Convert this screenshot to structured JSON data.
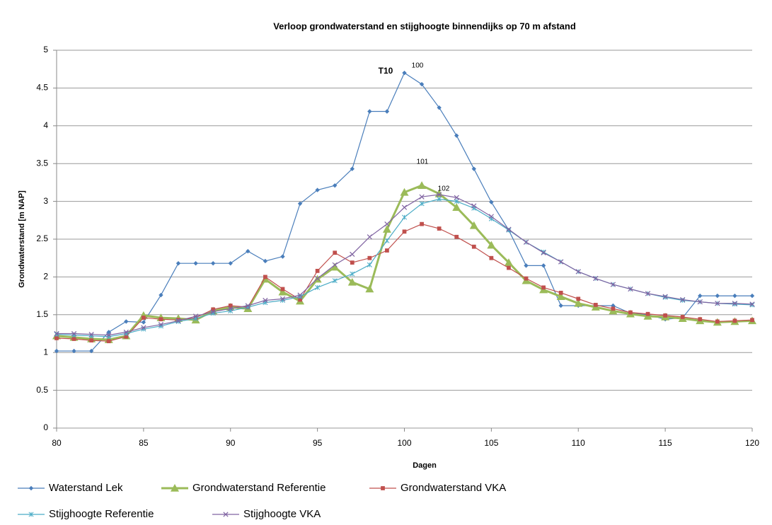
{
  "chart_data": {
    "type": "line",
    "title": "Verloop grondwaterstand en stijghoogte binnendijks op 70 m afstand",
    "x_label": "Dagen",
    "y_label": "Grondwaterstand [m NAP]",
    "annotations": [
      "T10",
      "100",
      "101",
      "102"
    ],
    "x": [
      80,
      81,
      82,
      83,
      84,
      85,
      86,
      87,
      88,
      89,
      90,
      91,
      92,
      93,
      94,
      95,
      96,
      97,
      98,
      99,
      100,
      101,
      102,
      103,
      104,
      105,
      106,
      107,
      108,
      109,
      110,
      111,
      112,
      113,
      114,
      115,
      116,
      117,
      118,
      119,
      120
    ],
    "series": [
      {
        "name": "Waterstand Lek",
        "color": "#4a7ebb",
        "marker": "diamond",
        "values": [
          1.02,
          1.02,
          1.02,
          1.27,
          1.41,
          1.4,
          1.76,
          2.18,
          2.18,
          2.18,
          2.18,
          2.34,
          2.21,
          2.27,
          2.97,
          3.15,
          3.21,
          3.43,
          4.19,
          4.19,
          4.7,
          4.55,
          4.24,
          3.87,
          3.43,
          2.99,
          2.62,
          2.15,
          2.15,
          1.62,
          1.62,
          1.62,
          1.62,
          1.52,
          1.5,
          1.44,
          1.46,
          1.75,
          1.75,
          1.75,
          1.75
        ]
      },
      {
        "name": "Grondwaterstand Referentie",
        "color": "#9bbb59",
        "marker": "triangle",
        "values": [
          1.22,
          1.2,
          1.18,
          1.17,
          1.22,
          1.49,
          1.46,
          1.45,
          1.43,
          1.55,
          1.6,
          1.58,
          1.97,
          1.8,
          1.68,
          1.97,
          2.13,
          1.93,
          1.84,
          2.63,
          3.12,
          3.21,
          3.1,
          2.92,
          2.68,
          2.42,
          2.19,
          1.95,
          1.83,
          1.74,
          1.65,
          1.6,
          1.55,
          1.51,
          1.48,
          1.47,
          1.45,
          1.42,
          1.4,
          1.41,
          1.42
        ]
      },
      {
        "name": "Grondwaterstand VKA",
        "color": "#c0504d",
        "marker": "square",
        "values": [
          1.19,
          1.18,
          1.16,
          1.15,
          1.21,
          1.46,
          1.44,
          1.43,
          1.46,
          1.57,
          1.62,
          1.6,
          2.0,
          1.84,
          1.7,
          2.08,
          2.32,
          2.19,
          2.25,
          2.35,
          2.6,
          2.7,
          2.64,
          2.53,
          2.4,
          2.25,
          2.12,
          1.98,
          1.86,
          1.79,
          1.71,
          1.63,
          1.58,
          1.53,
          1.51,
          1.49,
          1.47,
          1.44,
          1.41,
          1.42,
          1.43
        ]
      },
      {
        "name": "Stijghoogte Referentie",
        "color": "#4bacc6",
        "marker": "star",
        "values": [
          1.24,
          1.23,
          1.22,
          1.21,
          1.25,
          1.31,
          1.35,
          1.41,
          1.45,
          1.52,
          1.55,
          1.6,
          1.66,
          1.69,
          1.74,
          1.86,
          1.95,
          2.04,
          2.16,
          2.48,
          2.79,
          2.97,
          3.03,
          3.0,
          2.91,
          2.77,
          2.62,
          2.46,
          2.33,
          2.2,
          2.07,
          1.98,
          1.9,
          1.84,
          1.78,
          1.73,
          1.69,
          1.67,
          1.65,
          1.64,
          1.63
        ]
      },
      {
        "name": "Stijghoogte VKA",
        "color": "#8064a2",
        "marker": "cross",
        "values": [
          1.25,
          1.25,
          1.24,
          1.23,
          1.27,
          1.33,
          1.37,
          1.42,
          1.48,
          1.54,
          1.58,
          1.62,
          1.69,
          1.71,
          1.76,
          1.98,
          2.16,
          2.3,
          2.53,
          2.7,
          2.92,
          3.06,
          3.09,
          3.05,
          2.94,
          2.8,
          2.63,
          2.46,
          2.32,
          2.2,
          2.07,
          1.98,
          1.9,
          1.84,
          1.78,
          1.74,
          1.7,
          1.67,
          1.65,
          1.65,
          1.64
        ]
      }
    ],
    "xlim": [
      80,
      120
    ],
    "xticks": [
      80,
      85,
      90,
      95,
      100,
      105,
      110,
      115,
      120
    ],
    "ylim": [
      0,
      5
    ],
    "yticks": [
      0,
      0.5,
      1,
      1.5,
      2,
      2.5,
      3,
      3.5,
      4,
      4.5,
      5
    ],
    "grid": true,
    "legend": "bottom"
  }
}
